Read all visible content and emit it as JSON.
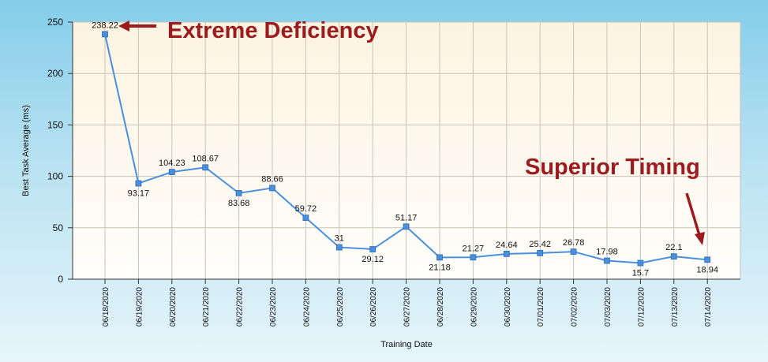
{
  "chart_data": {
    "type": "line",
    "xlabel": "Training Date",
    "ylabel": "Best Task Average (ms)",
    "ylim": [
      0,
      250
    ],
    "yticks": [
      0,
      50,
      100,
      150,
      200,
      250
    ],
    "grid": true,
    "line_color": "#4a8fdc",
    "marker_color": "#4a8fdc",
    "categories": [
      "06/18/2020",
      "06/19/2020",
      "06/20/2020",
      "06/21/2020",
      "06/22/2020",
      "06/23/2020",
      "06/24/2020",
      "06/25/2020",
      "06/26/2020",
      "06/27/2020",
      "06/28/2020",
      "06/29/2020",
      "06/30/2020",
      "07/01/2020",
      "07/02/2020",
      "07/03/2020",
      "07/12/2020",
      "07/13/2020",
      "07/14/2020"
    ],
    "values": [
      238.22,
      93.17,
      104.23,
      108.67,
      83.68,
      88.66,
      59.72,
      31,
      29.12,
      51.17,
      21.18,
      21.27,
      24.64,
      25.42,
      26.78,
      17.98,
      15.7,
      22.1,
      18.94
    ],
    "data_labels": [
      "238.22",
      "93.17",
      "104.23",
      "108.67",
      "83.68",
      "88.66",
      "59.72",
      "31",
      "29.12",
      "51.17",
      "21.18",
      "21.27",
      "24.64",
      "25.42",
      "26.78",
      "17.98",
      "15.7",
      "22.1",
      "18.94"
    ],
    "annotations": [
      {
        "text": "Extreme Deficiency",
        "color": "#9b1b1e"
      },
      {
        "text": "Superior Timing",
        "color": "#9b1b1e"
      }
    ]
  }
}
